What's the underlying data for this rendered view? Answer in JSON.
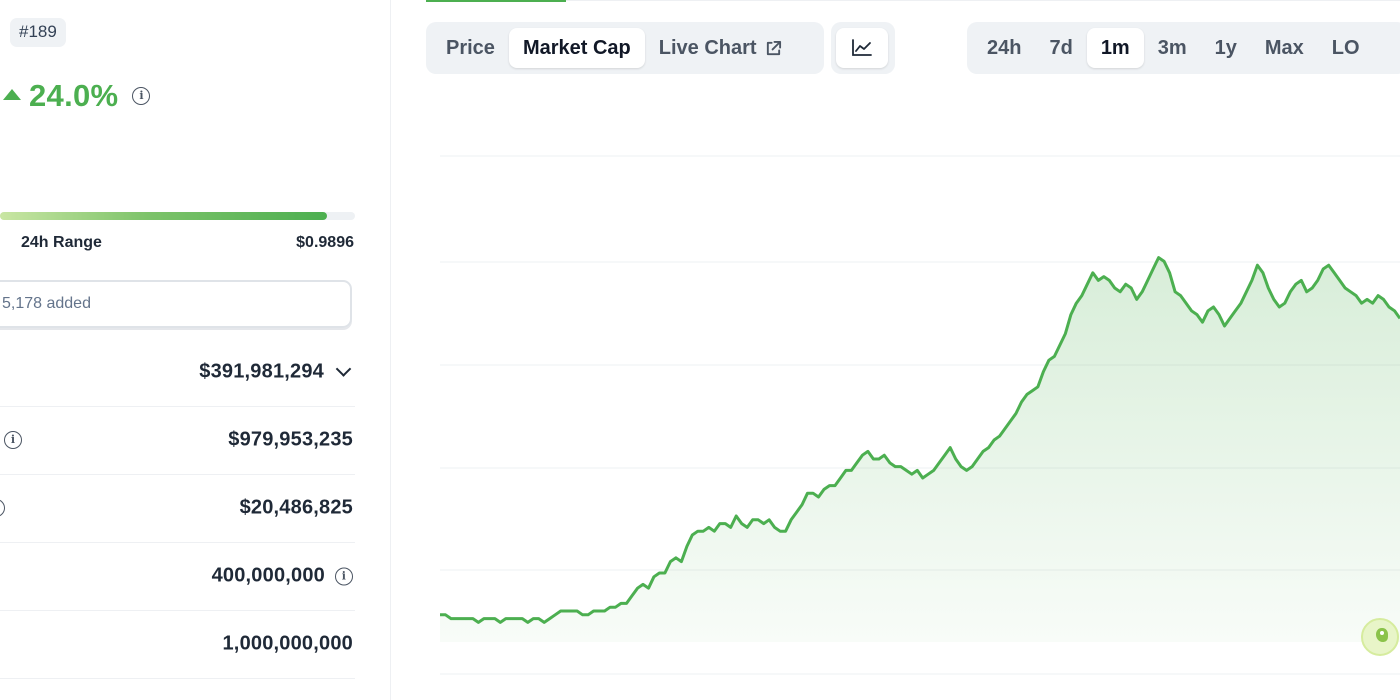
{
  "left_panel": {
    "rank": "#189",
    "change_24h": "24.0%",
    "range_fill_fraction": 0.92,
    "range_label": "24h Range",
    "range_high": "$0.9896",
    "watchlist_text": "5,178 added",
    "stats": [
      {
        "value": "$391,981,294",
        "has_dropdown": true
      },
      {
        "value": "$979,953,235"
      },
      {
        "value": "$20,486,825"
      },
      {
        "value": "400,000,000"
      },
      {
        "value": "1,000,000,000"
      }
    ]
  },
  "tabs": [
    {
      "label": "Price",
      "active": false
    },
    {
      "label": "Market Cap",
      "active": true
    },
    {
      "label": "Live Chart",
      "active": false,
      "icon": "external-link-icon"
    }
  ],
  "chart_type_icon": "line-chart-icon",
  "ranges": [
    {
      "label": "24h",
      "active": false
    },
    {
      "label": "7d",
      "active": false
    },
    {
      "label": "1m",
      "active": true
    },
    {
      "label": "3m",
      "active": false
    },
    {
      "label": "1y",
      "active": false
    },
    {
      "label": "Max",
      "active": false
    },
    {
      "label": "LO",
      "active": false
    }
  ],
  "colors": {
    "accent_green": "#4caf50",
    "line_green": "#4caf50",
    "segment_bg": "#eff2f5",
    "grid": "#eef0f3"
  },
  "chart_data": {
    "type": "area",
    "title": "",
    "xlabel": "",
    "ylabel": "",
    "grid": true,
    "ylim": [
      0,
      100
    ],
    "series": [
      {
        "values": [
          4,
          4,
          3,
          3,
          3,
          3,
          3,
          2,
          3,
          3,
          3,
          2,
          3,
          3,
          3,
          3,
          2,
          3,
          3,
          2,
          3,
          4,
          5,
          5,
          5,
          5,
          4,
          4,
          5,
          5,
          5,
          6,
          6,
          7,
          7,
          9,
          11,
          12,
          11,
          14,
          15,
          15,
          18,
          19,
          18,
          22,
          25,
          26,
          26,
          27,
          26,
          28,
          28,
          27,
          30,
          28,
          27,
          29,
          29,
          28,
          29,
          27,
          26,
          26,
          29,
          31,
          33,
          36,
          36,
          35,
          37,
          38,
          38,
          40,
          42,
          42,
          44,
          46,
          47,
          45,
          45,
          46,
          44,
          43,
          43,
          42,
          41,
          42,
          40,
          41,
          42,
          44,
          46,
          48,
          45,
          43,
          42,
          43,
          45,
          47,
          48,
          50,
          51,
          53,
          55,
          57,
          60,
          62,
          63,
          64,
          68,
          71,
          72,
          75,
          78,
          83,
          86,
          88,
          91,
          94,
          92,
          93,
          92,
          90,
          89,
          91,
          90,
          87,
          89,
          92,
          95,
          98,
          97,
          94,
          89,
          88,
          86,
          84,
          83,
          81,
          84,
          85,
          83,
          80,
          82,
          84,
          86,
          89,
          92,
          96,
          94,
          90,
          87,
          85,
          86,
          89,
          91,
          92,
          89,
          90,
          92,
          95,
          96,
          94,
          92,
          90,
          89,
          88,
          86,
          87,
          86,
          88,
          87,
          85,
          84,
          82
        ]
      }
    ]
  }
}
